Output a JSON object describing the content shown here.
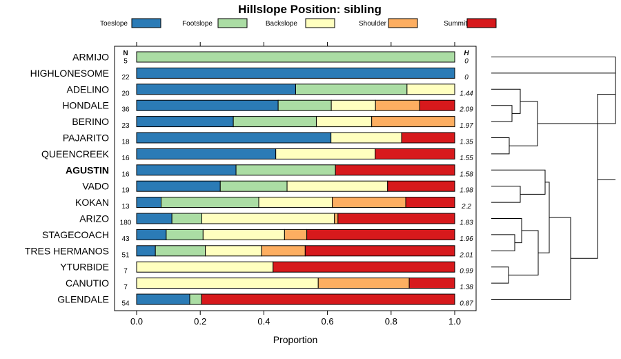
{
  "chart_data": {
    "type": "bar",
    "orientation": "horizontal",
    "stacked": true,
    "title": "Hillslope Position: sibling",
    "xlabel": "Proportion",
    "ylabel": "",
    "xlim": [
      0,
      1
    ],
    "xticks": [
      "0.0",
      "0.2",
      "0.4",
      "0.6",
      "0.8",
      "1.0"
    ],
    "n_header": "N",
    "h_header": "H",
    "legend_position": "top",
    "series": [
      {
        "name": "Toeslope",
        "color": "#2b7bb6"
      },
      {
        "name": "Footslope",
        "color": "#abdda4"
      },
      {
        "name": "Backslope",
        "color": "#ffffbf"
      },
      {
        "name": "Shoulder",
        "color": "#fdae61"
      },
      {
        "name": "Summit",
        "color": "#d7191c"
      }
    ],
    "rows": [
      {
        "label": "ARMIJO",
        "bold": false,
        "n": "5",
        "h": "0",
        "values": [
          0,
          1.0,
          0,
          0,
          0
        ]
      },
      {
        "label": "HIGHLONESOME",
        "bold": false,
        "n": "22",
        "h": "0",
        "values": [
          1.0,
          0,
          0,
          0,
          0
        ]
      },
      {
        "label": "ADELINO",
        "bold": false,
        "n": "20",
        "h": "1.44",
        "values": [
          0.5,
          0.35,
          0.15,
          0,
          0
        ]
      },
      {
        "label": "HONDALE",
        "bold": false,
        "n": "36",
        "h": "2.09",
        "values": [
          0.445,
          0.167,
          0.139,
          0.139,
          0.11
        ]
      },
      {
        "label": "BERINO",
        "bold": false,
        "n": "23",
        "h": "1.97",
        "values": [
          0.304,
          0.261,
          0.174,
          0.261,
          0
        ]
      },
      {
        "label": "PAJARITO",
        "bold": false,
        "n": "18",
        "h": "1.35",
        "values": [
          0.611,
          0,
          0.222,
          0,
          0.167
        ]
      },
      {
        "label": "QUEENCREEK",
        "bold": false,
        "n": "16",
        "h": "1.55",
        "values": [
          0.4375,
          0,
          0.3125,
          0,
          0.25
        ]
      },
      {
        "label": "AGUSTIN",
        "bold": true,
        "n": "16",
        "h": "1.58",
        "values": [
          0.3125,
          0.3125,
          0,
          0,
          0.375
        ]
      },
      {
        "label": "VADO",
        "bold": false,
        "n": "19",
        "h": "1.98",
        "values": [
          0.263,
          0.21,
          0.316,
          0,
          0.211
        ]
      },
      {
        "label": "KOKAN",
        "bold": false,
        "n": "13",
        "h": "2.2",
        "values": [
          0.077,
          0.307,
          0.231,
          0.231,
          0.154
        ]
      },
      {
        "label": "ARIZO",
        "bold": false,
        "n": "180",
        "h": "1.83",
        "values": [
          0.111,
          0.094,
          0.417,
          0.011,
          0.367
        ]
      },
      {
        "label": "STAGECOACH",
        "bold": false,
        "n": "43",
        "h": "1.96",
        "values": [
          0.093,
          0.116,
          0.256,
          0.07,
          0.465
        ]
      },
      {
        "label": "TRES HERMANOS",
        "bold": false,
        "n": "51",
        "h": "2.01",
        "values": [
          0.059,
          0.157,
          0.177,
          0.137,
          0.47
        ]
      },
      {
        "label": "YTURBIDE",
        "bold": false,
        "n": "7",
        "h": "0.99",
        "values": [
          0,
          0,
          0.429,
          0,
          0.571
        ]
      },
      {
        "label": "CANUTIO",
        "bold": false,
        "n": "7",
        "h": "1.38",
        "values": [
          0,
          0,
          0.571,
          0.286,
          0.143
        ]
      },
      {
        "label": "GLENDALE",
        "bold": false,
        "n": "54",
        "h": "0.87",
        "values": [
          0.167,
          0.037,
          0,
          0,
          0.796
        ]
      }
    ]
  }
}
